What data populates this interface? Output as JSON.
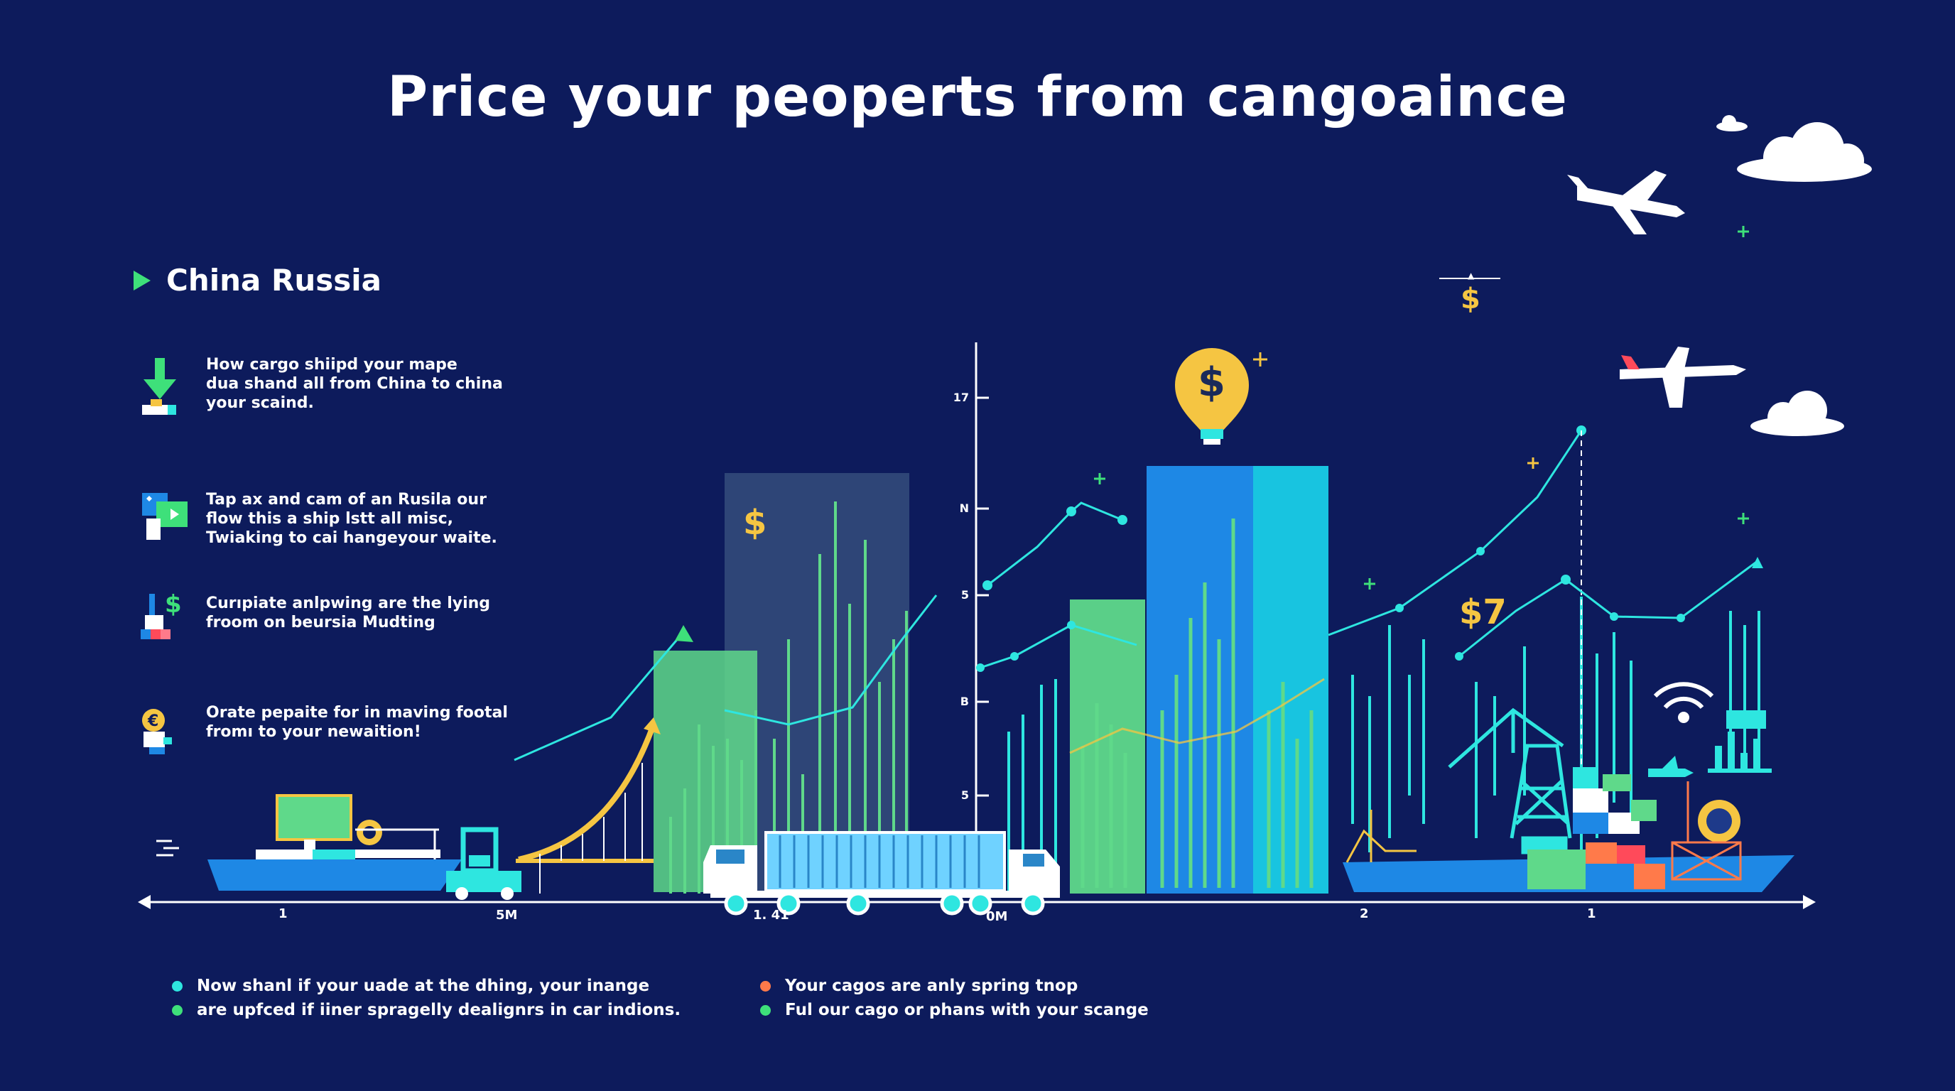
{
  "title": "Price your peoperts from cangoaince",
  "section": {
    "label": "China Russia"
  },
  "items": [
    {
      "text": "How cargo shiipd your mape\ndua shand all from China to china\nyour scaind.",
      "icon": "download-arrow-icon"
    },
    {
      "text": "Tap ax  and cam of an Rusila our\nflow this a ship lstt all misc,\nTwiaking to cai hangeyour waite.",
      "icon": "screen-video-icon"
    },
    {
      "text": "Curıpiate anlpwing are the lying\nfroom on beursia Mudting",
      "icon": "dollar-building-icon"
    },
    {
      "text": "Orate pepaite for in maving footal\nfromı to your newaition!",
      "icon": "coin-person-icon"
    }
  ],
  "y_axis_labels": [
    "17",
    "N",
    "5",
    "B",
    "5"
  ],
  "x_axis_labels": [
    "1",
    "5M",
    "1.  41",
    "0M",
    "2",
    "1"
  ],
  "money_labels": {
    "pin": "$",
    "left_bar": "$",
    "top_right": "$",
    "seven": "$7"
  },
  "legend_left": [
    {
      "text": "Now shanl if your uade at the dhing, your inange",
      "color": "#2ee6e0"
    },
    {
      "text": "are upfced if iiner spragelly dealignrs in car indions.",
      "color": "#3ee07a"
    }
  ],
  "legend_right": [
    {
      "text": "Your cagos are anly spring tnop",
      "color": "#ff7a4a"
    },
    {
      "text": "Ful our cago or phans with your scange",
      "color": "#3ee07a"
    }
  ],
  "colors": {
    "background": "#0d1b5c",
    "teal": "#2ee6e0",
    "green": "#3ee07a",
    "blue": "#1e88e5",
    "yellow": "#f5c542"
  }
}
